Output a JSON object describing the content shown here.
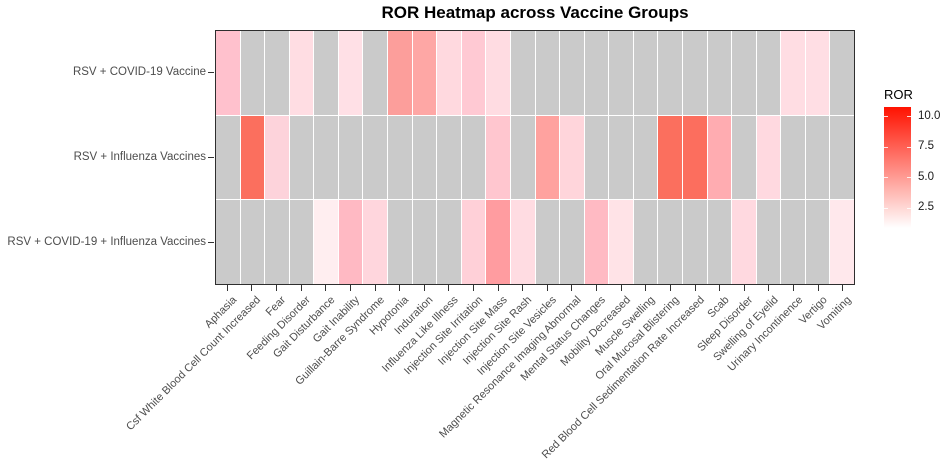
{
  "title": "ROR Heatmap across Vaccine Groups",
  "legend": {
    "title": "ROR"
  },
  "chart_data": {
    "type": "heatmap",
    "title": "ROR Heatmap across Vaccine Groups",
    "x_categories": [
      "Aphasia",
      "Csf White Blood Cell Count Increased",
      "Fear",
      "Feeding Disorder",
      "Gait Disturbance",
      "Gait Inability",
      "Guillain-Barre Syndrome",
      "Hypotonia",
      "Induration",
      "Influenza Like Illness",
      "Injection Site Irritation",
      "Injection Site Mass",
      "Injection Site Rash",
      "Injection Site Vesicles",
      "Magnetic Resonance Imaging Abnormal",
      "Mental Status Changes",
      "Mobility Decreased",
      "Muscle Swelling",
      "Oral Mucosal Blistering",
      "Red Blood Cell Sedimentation Rate Increased",
      "Scab",
      "Sleep Disorder",
      "Swelling of Eyelid",
      "Urinary Incontinence",
      "Vertigo",
      "Vomiting"
    ],
    "na_color": "#CACACA",
    "colorbar": {
      "label": "ROR",
      "tick_labels": [
        "10.0",
        "7.5",
        "5.0",
        "2.5"
      ],
      "tick_values": [
        10.0,
        7.5,
        5.0,
        2.5
      ],
      "scale_domain": [
        0.9,
        10.8
      ],
      "high_color": "#FF1200",
      "low_color": "#FFFFFF"
    },
    "rows": [
      {
        "name": "RSV + COVID-19 Vaccine",
        "ror": [
          3.1,
          null,
          null,
          2.1,
          null,
          2.0,
          null,
          4.6,
          4.4,
          2.3,
          2.9,
          2.1,
          null,
          null,
          null,
          null,
          null,
          null,
          null,
          null,
          null,
          null,
          null,
          2.1,
          2.1,
          null
        ],
        "colors": [
          "#FFC1CD",
          null,
          null,
          "#FFDDE3",
          null,
          "#FFE0E6",
          null,
          "#FC9E9B",
          "#FEA7A5",
          "#FFD9DF",
          "#FFC9D3",
          "#FFDCE2",
          null,
          null,
          null,
          null,
          null,
          null,
          null,
          null,
          null,
          null,
          null,
          "#FFDDE3",
          "#FFDEE4",
          null
        ]
      },
      {
        "name": "RSV + Influenza Vaccines",
        "ror": [
          null,
          6.8,
          2.4,
          null,
          null,
          null,
          null,
          null,
          null,
          null,
          null,
          2.9,
          null,
          4.5,
          2.4,
          null,
          null,
          null,
          6.8,
          6.8,
          4.0,
          null,
          2.2,
          null,
          null,
          null
        ],
        "colors": [
          null,
          "#FB6F5E",
          "#FDD3DB",
          null,
          null,
          null,
          null,
          null,
          null,
          null,
          null,
          "#FFC6CF",
          null,
          "#FFA29F",
          "#FFD5DB",
          null,
          null,
          null,
          "#FB6F5E",
          "#FC6E5E",
          "#FFACB1",
          null,
          "#FFD9E0",
          null,
          null,
          null
        ]
      },
      {
        "name": "RSV + COVID-19 + Influenza Vaccines",
        "ror": [
          null,
          null,
          null,
          null,
          1.5,
          3.4,
          2.4,
          null,
          null,
          null,
          2.6,
          4.6,
          2.1,
          null,
          null,
          3.4,
          1.9,
          null,
          null,
          null,
          null,
          2.2,
          null,
          null,
          null,
          1.7
        ],
        "colors": [
          null,
          null,
          null,
          null,
          "#FFEEF0",
          "#FFB9C3",
          "#FFD6DD",
          null,
          null,
          null,
          "#FFD0D8",
          "#FF9CA0",
          "#FFDCE2",
          null,
          null,
          "#FFBAC3",
          "#FFE3E7",
          null,
          null,
          null,
          null,
          "#FFD9E0",
          null,
          null,
          null,
          "#FFE8EC"
        ]
      }
    ]
  }
}
